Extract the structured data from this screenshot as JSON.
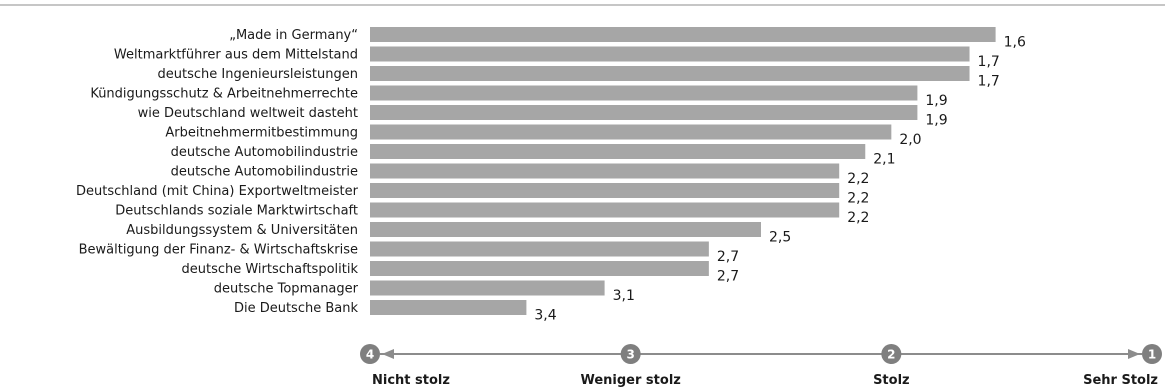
{
  "colors": {
    "bar": "#a6a6a6",
    "marker": "#7f7f7f",
    "axis": "#8c8c8c",
    "top_rule": "#8c8c8c"
  },
  "chart_data": {
    "type": "bar",
    "orientation": "horizontal",
    "categories": [
      "„Made in Germany“",
      "Weltmarktführer aus dem Mittelstand",
      "deutsche Ingenieursleistungen",
      "Kündigungsschutz & Arbeitnehmerrechte",
      "wie Deutschland weltweit dasteht",
      "Arbeitnehmermitbestimmung",
      "deutsche Automobilindustrie",
      "deutsche Automobilindustrie",
      "Deutschland (mit China) Exportweltmeister",
      "Deutschlands soziale Marktwirtschaft",
      "Ausbildungssystem & Universitäten",
      "Bewältigung der Finanz- & Wirtschaftskrise",
      "deutsche Wirtschaftspolitik",
      "deutsche Topmanager",
      "Die Deutsche Bank"
    ],
    "values": [
      1.6,
      1.7,
      1.7,
      1.9,
      1.9,
      2.0,
      2.1,
      2.2,
      2.2,
      2.2,
      2.5,
      2.7,
      2.7,
      3.1,
      3.4
    ],
    "value_labels": [
      "1,6",
      "1,7",
      "1,7",
      "1,9",
      "1,9",
      "2,0",
      "2,1",
      "2,2",
      "2,2",
      "2,2",
      "2,5",
      "2,7",
      "2,7",
      "3,1",
      "3,4"
    ],
    "xlim": [
      4,
      1
    ],
    "scale": [
      {
        "value": 4,
        "marker": "4",
        "label": "Nicht stolz"
      },
      {
        "value": 3,
        "marker": "3",
        "label": "Weniger stolz"
      },
      {
        "value": 2,
        "marker": "2",
        "label": "Stolz"
      },
      {
        "value": 1,
        "marker": "1",
        "label": "Sehr Stolz"
      }
    ],
    "grid": false,
    "legend": "none"
  }
}
